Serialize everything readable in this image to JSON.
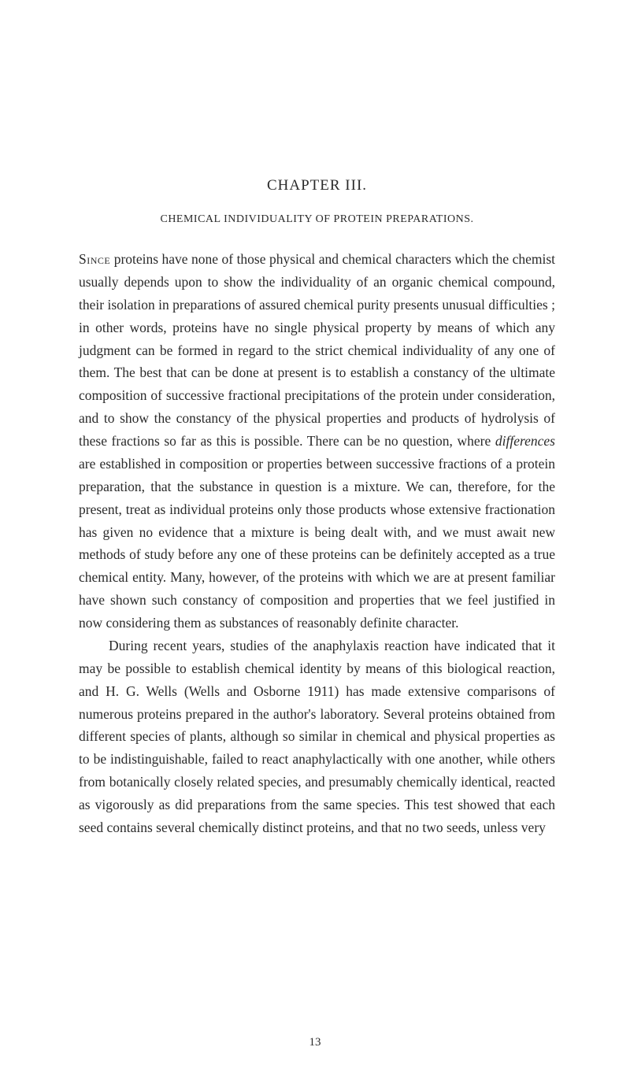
{
  "chapter": {
    "title": "CHAPTER III.",
    "section_title": "CHEMICAL INDIVIDUALITY OF PROTEIN PREPARATIONS."
  },
  "paragraph1": {
    "lead": "Since",
    "text": " proteins have none of those physical and chemical characters which the chemist usually depends upon to show the individuality of an organic chemical compound, their isolation in preparations of assured chemical purity presents unusual difficulties ; in other words, proteins have no single physical property by means of which any judgment can be formed in regard to the strict chemical individuality of any one of them. The best that can be done at present is to establish a constancy of the ultimate composition of successive fractional precipitations of the protein under consideration, and to show the constancy of the physical properties and products of hydrolysis of these fractions so far as this is possible. There can be no question, where ",
    "italic": "differences",
    "text2": " are established in composition or properties between successive fractions of a protein preparation, that the substance in question is a mixture. We can, therefore, for the present, treat as individual proteins only those products whose extensive fractionation has given no evidence that a mixture is being dealt with, and we must await new methods of study before any one of these proteins can be definitely accepted as a true chemical entity. Many, however, of the proteins with which we are at present familiar have shown such constancy of composition and properties that we feel justified in now considering them as substances of reasonably definite character."
  },
  "paragraph2": {
    "text": "During recent years, studies of the anaphylaxis reaction have indicated that it may be possible to establish chemical identity by means of this biological reaction, and H. G. Wells (Wells and Osborne 1911) has made extensive comparisons of numerous proteins prepared in the author's laboratory. Several proteins obtained from different species of plants, although so similar in chemical and physical properties as to be indistinguishable, failed to react anaphylactically with one another, while others from botanically closely related species, and presumably chemically identical, reacted as vigorously as did preparations from the same species. This test showed that each seed contains several chemically distinct proteins, and that no two seeds, unless very"
  },
  "page_number": "13"
}
